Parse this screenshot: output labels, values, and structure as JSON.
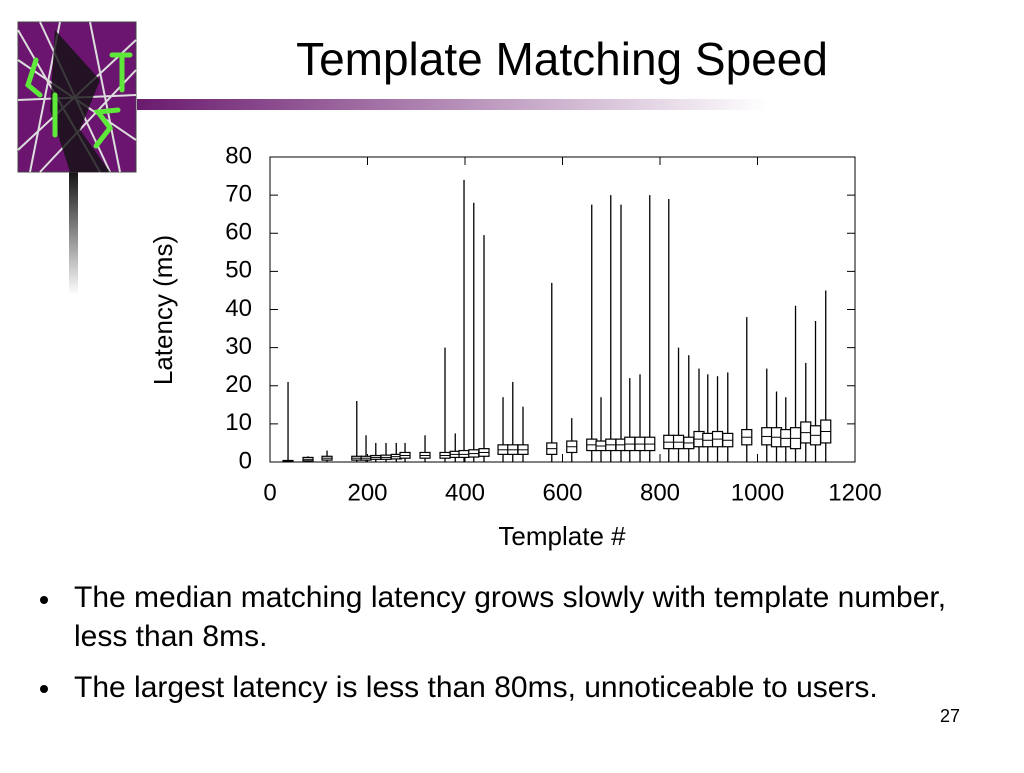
{
  "slide": {
    "title": "Template Matching Speed",
    "bullets": [
      "The median matching latency grows slowly with template number, less than 8ms.",
      "The largest latency is less than 80ms, unnoticeable to users."
    ],
    "page_number": "27"
  },
  "chart_data": {
    "type": "box",
    "x_label": "Template #",
    "y_label": "Latency (ms)",
    "x": [
      37,
      78,
      117,
      178,
      197,
      217,
      238,
      259,
      277,
      318,
      359,
      380,
      398,
      418,
      439,
      478,
      498,
      519,
      578,
      619,
      660,
      679,
      699,
      720,
      738,
      759,
      779,
      818,
      838,
      859,
      880,
      898,
      918,
      939,
      978,
      1019,
      1039,
      1058,
      1078,
      1099,
      1119,
      1140
    ],
    "min": [
      0,
      0,
      0,
      0,
      0,
      0,
      0,
      0,
      0,
      0,
      0,
      0,
      0,
      0,
      0,
      0,
      0,
      0,
      0,
      0,
      0,
      0,
      0,
      0,
      0,
      0,
      0,
      0,
      0,
      0,
      0,
      0,
      0,
      0,
      0,
      0,
      0,
      0,
      0,
      0,
      0,
      0
    ],
    "q1": [
      0.1,
      0.3,
      0.5,
      0.5,
      0.5,
      0.7,
      0.7,
      0.8,
      1,
      1,
      1,
      1.2,
      1.2,
      1.3,
      1.5,
      2,
      2,
      2,
      2,
      2.5,
      3,
      3,
      3,
      3,
      3,
      3,
      3,
      3.5,
      3.5,
      3.5,
      4,
      4,
      4,
      4,
      4.5,
      4.5,
      4,
      4,
      3.5,
      5,
      4.5,
      5
    ],
    "median": [
      0.2,
      0.7,
      1,
      1,
      1,
      1.2,
      1.2,
      1.4,
      1.7,
      1.7,
      1.7,
      2,
      2,
      2.2,
      2.5,
      3.2,
      3.2,
      3.2,
      3.5,
      4,
      4.5,
      4.2,
      4.5,
      4.5,
      4.7,
      4.7,
      4.7,
      5.2,
      5.2,
      5,
      6,
      5.7,
      6,
      5.7,
      6.5,
      6.7,
      6.5,
      6.2,
      6.2,
      7.7,
      7,
      8
    ],
    "q3": [
      0.4,
      1.2,
      1.5,
      1.5,
      1.5,
      1.7,
      1.8,
      2,
      2.5,
      2.5,
      2.5,
      2.8,
      3,
      3.2,
      3.5,
      4.5,
      4.5,
      4.5,
      5,
      5.5,
      6,
      5.5,
      6,
      6,
      6.5,
      6.5,
      6.5,
      7,
      7,
      6.5,
      8,
      7.5,
      8,
      7.5,
      8.5,
      9,
      9,
      8.5,
      9,
      10.5,
      9.5,
      11
    ],
    "max": [
      21,
      1.5,
      3,
      16,
      7,
      5,
      5,
      5,
      5,
      7,
      30,
      7.5,
      74,
      68,
      59.5,
      17,
      21,
      14.5,
      47,
      11.5,
      67.5,
      17,
      70,
      67.5,
      22,
      23,
      70,
      69,
      30,
      28,
      24.5,
      23,
      22.5,
      23.5,
      38,
      24.5,
      18.5,
      17,
      41,
      26,
      37,
      45
    ],
    "color": "#000000",
    "xlim": [
      0,
      1200
    ],
    "xticks": [
      0,
      200,
      400,
      600,
      800,
      1000,
      1200
    ],
    "ylim": [
      0,
      80
    ],
    "yticks": [
      0,
      10,
      20,
      30,
      40,
      50,
      60,
      70,
      80
    ]
  }
}
